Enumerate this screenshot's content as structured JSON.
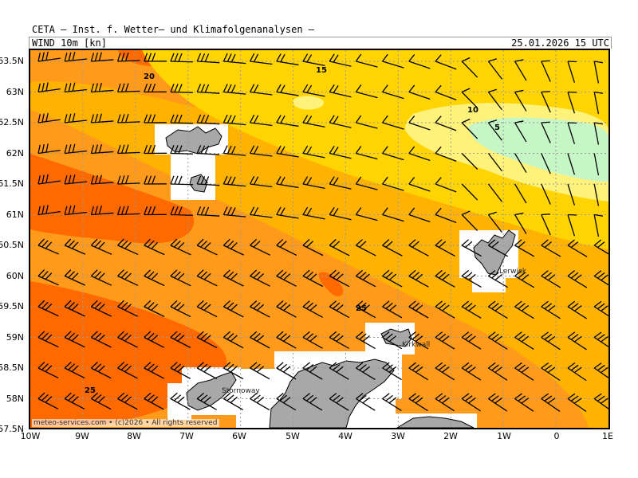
{
  "header": {
    "title": "CETA — Inst. f. Wetter— und Klimafolgenanalysen —",
    "variable": "WIND 10m [kn]",
    "datetime": "25.01.2026 15 UTC"
  },
  "axes": {
    "lon_labels": [
      "10W",
      "9W",
      "8W",
      "7W",
      "6W",
      "5W",
      "4W",
      "3W",
      "2W",
      "1W",
      "0",
      "1E"
    ],
    "lat_labels": [
      "63.5N",
      "63N",
      "62.5N",
      "62N",
      "61.5N",
      "61N",
      "60.5N",
      "60N",
      "59.5N",
      "59N",
      "58.5N",
      "58N",
      "57.5N"
    ],
    "lon_range": [
      -10,
      1
    ],
    "lat_range": [
      57.5,
      63.6
    ]
  },
  "contours": [
    {
      "label": "20"
    },
    {
      "label": "15"
    },
    {
      "label": "10"
    },
    {
      "label": "5"
    },
    {
      "label": "25"
    },
    {
      "label": "25"
    }
  ],
  "places": [
    {
      "name": "Lerwick"
    },
    {
      "name": "Kirkwall"
    },
    {
      "name": "Stornoway"
    }
  ],
  "footer": "meteo-services.com • (c)2026 • All rights reserved",
  "colors": {
    "c5": "#c6f6c6",
    "c10": "#fff27a",
    "c15": "#ffd700",
    "c20": "#ffa500",
    "c25": "#ff7f00",
    "c30": "#ff5a00",
    "land": "#a8a8a8",
    "grid": "#9a9a9a"
  }
}
